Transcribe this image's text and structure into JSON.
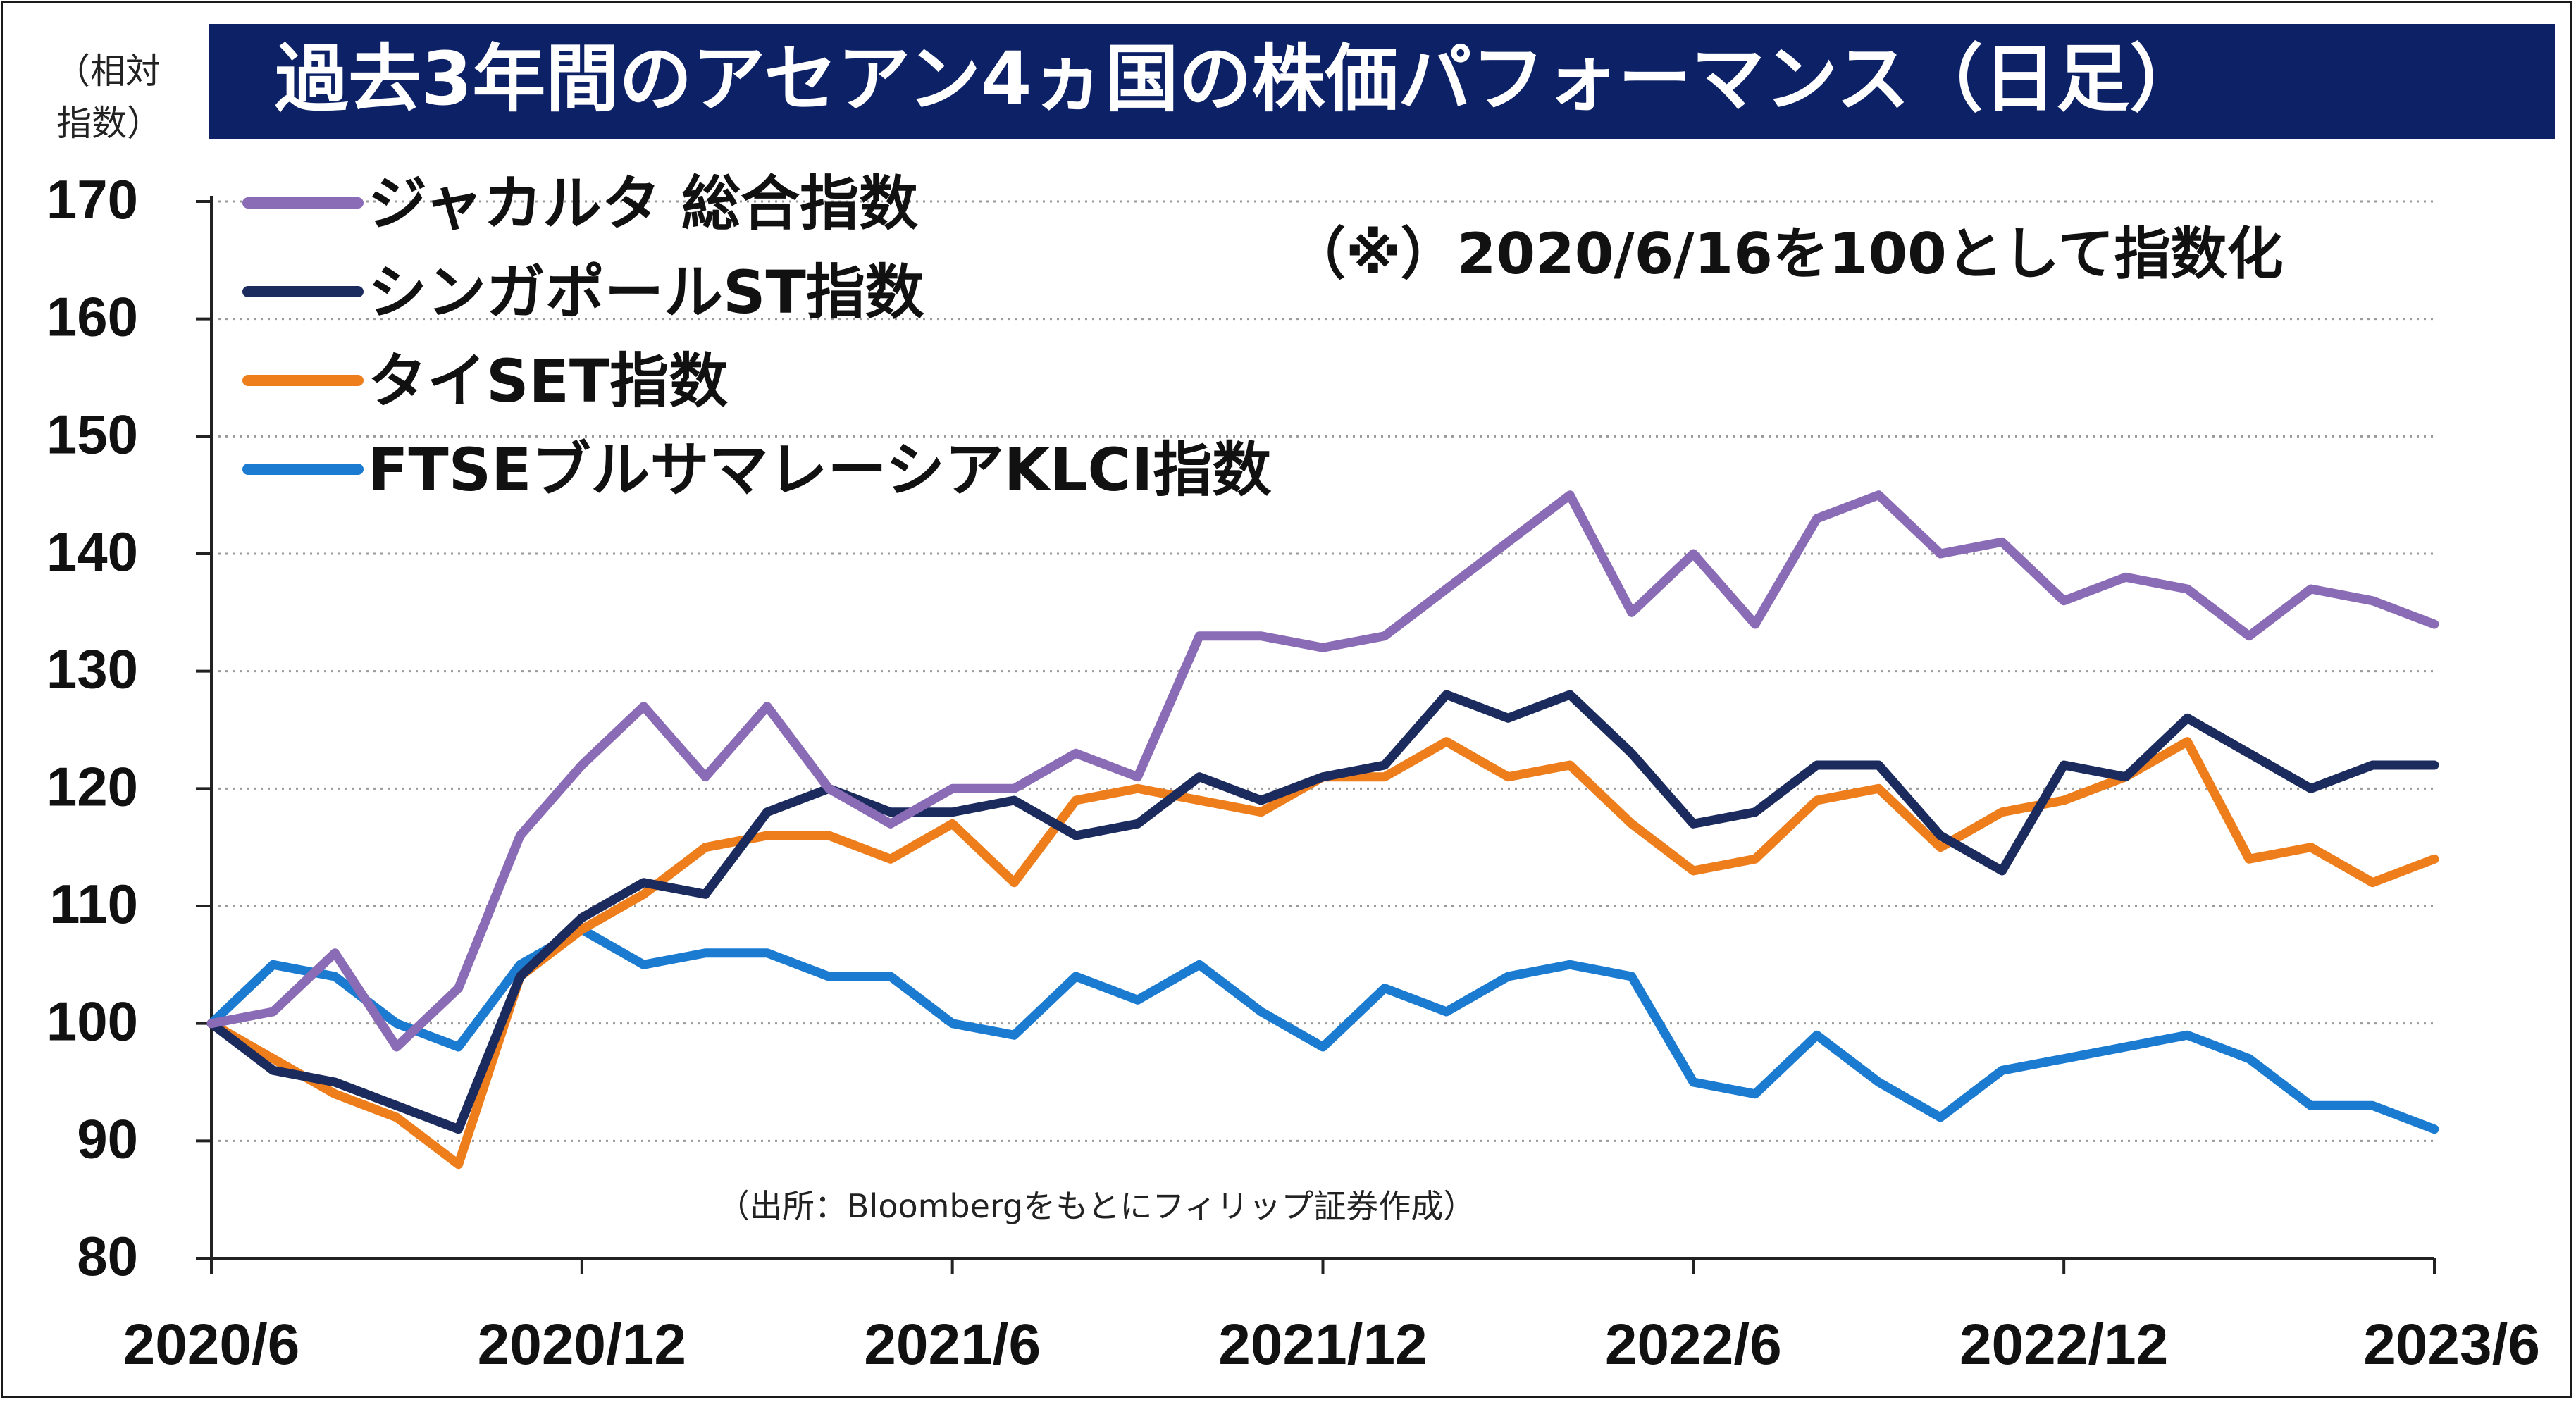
{
  "chart_data": {
    "type": "line",
    "title": "過去3年間のアセアン4ヵ国の株価パフォーマンス（日足）",
    "ylabel": "（相対指数）",
    "ylabel_lines": [
      "（相対",
      "指数）"
    ],
    "note": "（※）2020/6/16を100として指数化",
    "source": "（出所：Bloombergをもとにフィリップ証券作成）",
    "ylim": [
      80,
      170
    ],
    "yticks": [
      80,
      90,
      100,
      110,
      120,
      130,
      140,
      150,
      160,
      170
    ],
    "x_tick_labels": [
      "2020/6",
      "2020/12",
      "2021/6",
      "2021/12",
      "2022/6",
      "2022/12",
      "2023/6"
    ],
    "x_range": [
      "2020/6",
      "2023/6"
    ],
    "grid": "horizontal dotted",
    "legend_position": "top-left",
    "series": [
      {
        "name": "ジャカルタ 総合指数",
        "color": "#8a6bb5",
        "x": [
          "2020/6",
          "2020/7",
          "2020/8",
          "2020/9",
          "2020/10",
          "2020/11",
          "2020/12",
          "2021/1",
          "2021/2",
          "2021/3",
          "2021/4",
          "2021/5",
          "2021/6",
          "2021/7",
          "2021/8",
          "2021/9",
          "2021/10",
          "2021/11",
          "2021/12",
          "2022/1",
          "2022/2",
          "2022/3",
          "2022/4",
          "2022/5",
          "2022/6",
          "2022/7",
          "2022/8",
          "2022/9",
          "2022/10",
          "2022/11",
          "2022/12",
          "2023/1",
          "2023/2",
          "2023/3",
          "2023/4",
          "2023/5",
          "2023/6"
        ],
        "values": [
          100,
          101,
          106,
          98,
          103,
          116,
          122,
          127,
          121,
          127,
          120,
          117,
          120,
          120,
          123,
          121,
          133,
          133,
          132,
          133,
          137,
          141,
          145,
          135,
          140,
          134,
          143,
          145,
          140,
          141,
          136,
          138,
          137,
          133,
          137,
          136,
          134
        ]
      },
      {
        "name": "シンガポールST指数",
        "color": "#1c2b5e",
        "x": [
          "2020/6",
          "2020/7",
          "2020/8",
          "2020/9",
          "2020/10",
          "2020/11",
          "2020/12",
          "2021/1",
          "2021/2",
          "2021/3",
          "2021/4",
          "2021/5",
          "2021/6",
          "2021/7",
          "2021/8",
          "2021/9",
          "2021/10",
          "2021/11",
          "2021/12",
          "2022/1",
          "2022/2",
          "2022/3",
          "2022/4",
          "2022/5",
          "2022/6",
          "2022/7",
          "2022/8",
          "2022/9",
          "2022/10",
          "2022/11",
          "2022/12",
          "2023/1",
          "2023/2",
          "2023/3",
          "2023/4",
          "2023/5",
          "2023/6"
        ],
        "values": [
          100,
          96,
          95,
          93,
          91,
          104,
          109,
          112,
          111,
          118,
          120,
          118,
          118,
          119,
          116,
          117,
          121,
          119,
          121,
          122,
          128,
          126,
          128,
          123,
          117,
          118,
          122,
          122,
          116,
          113,
          122,
          121,
          126,
          123,
          120,
          122,
          122
        ]
      },
      {
        "name": "タイSET指数",
        "color": "#ee7d1c",
        "x": [
          "2020/6",
          "2020/7",
          "2020/8",
          "2020/9",
          "2020/10",
          "2020/11",
          "2020/12",
          "2021/1",
          "2021/2",
          "2021/3",
          "2021/4",
          "2021/5",
          "2021/6",
          "2021/7",
          "2021/8",
          "2021/9",
          "2021/10",
          "2021/11",
          "2021/12",
          "2022/1",
          "2022/2",
          "2022/3",
          "2022/4",
          "2022/5",
          "2022/6",
          "2022/7",
          "2022/8",
          "2022/9",
          "2022/10",
          "2022/11",
          "2022/12",
          "2023/1",
          "2023/2",
          "2023/3",
          "2023/4",
          "2023/5",
          "2023/6"
        ],
        "values": [
          100,
          97,
          94,
          92,
          88,
          104,
          108,
          111,
          115,
          116,
          116,
          114,
          117,
          112,
          119,
          120,
          119,
          118,
          121,
          121,
          124,
          121,
          122,
          117,
          113,
          114,
          119,
          120,
          115,
          118,
          119,
          121,
          124,
          114,
          115,
          112,
          114
        ]
      },
      {
        "name": "FTSEブルサマレーシアKLCI指数",
        "color": "#1b7bd1",
        "x": [
          "2020/6",
          "2020/7",
          "2020/8",
          "2020/9",
          "2020/10",
          "2020/11",
          "2020/12",
          "2021/1",
          "2021/2",
          "2021/3",
          "2021/4",
          "2021/5",
          "2021/6",
          "2021/7",
          "2021/8",
          "2021/9",
          "2021/10",
          "2021/11",
          "2021/12",
          "2022/1",
          "2022/2",
          "2022/3",
          "2022/4",
          "2022/5",
          "2022/6",
          "2022/7",
          "2022/8",
          "2022/9",
          "2022/10",
          "2022/11",
          "2022/12",
          "2023/1",
          "2023/2",
          "2023/3",
          "2023/4",
          "2023/5",
          "2023/6"
        ],
        "values": [
          100,
          105,
          104,
          100,
          98,
          105,
          108,
          105,
          106,
          106,
          104,
          104,
          100,
          99,
          104,
          102,
          105,
          101,
          98,
          103,
          101,
          104,
          105,
          104,
          95,
          94,
          99,
          95,
          92,
          96,
          97,
          98,
          99,
          97,
          93,
          93,
          91
        ]
      }
    ]
  }
}
